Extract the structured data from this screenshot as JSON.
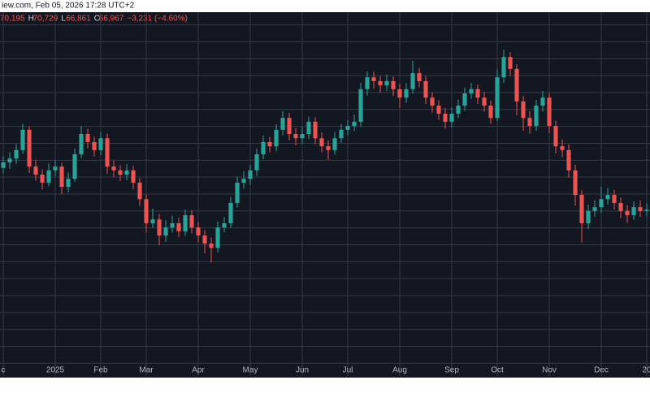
{
  "header": {
    "source": "iew.com, Feb 05, 2026 17:28 UTC+2",
    "ohlc": [
      {
        "label": "O",
        "value": "70,195"
      },
      {
        "label": "H",
        "value": "70,729"
      },
      {
        "label": "L",
        "value": "66,861"
      },
      {
        "label": "C",
        "value": "66,967"
      }
    ],
    "change": "−3,231 (−4.60%)"
  },
  "chart_data": {
    "type": "candlestick",
    "categories": [
      "c",
      null,
      null,
      null,
      null,
      null,
      null,
      null,
      "2025",
      null,
      null,
      null,
      null,
      null,
      null,
      "Feb",
      null,
      null,
      null,
      null,
      null,
      null,
      "Mar",
      null,
      null,
      null,
      null,
      null,
      null,
      null,
      "Apr",
      null,
      null,
      null,
      null,
      null,
      null,
      null,
      "May",
      null,
      null,
      null,
      null,
      null,
      null,
      null,
      "Jun",
      null,
      null,
      null,
      null,
      null,
      null,
      "Jul",
      null,
      null,
      null,
      null,
      null,
      null,
      null,
      "Aug",
      null,
      null,
      null,
      null,
      null,
      null,
      null,
      "Sep",
      null,
      null,
      null,
      null,
      null,
      null,
      "Oct",
      null,
      null,
      null,
      null,
      null,
      null,
      null,
      "Nov",
      null,
      null,
      null,
      null,
      null,
      null,
      null,
      "Dec",
      null,
      null,
      null,
      null,
      null,
      null,
      "20"
    ],
    "open": [
      98200,
      99500,
      100400,
      102400,
      107200,
      98500,
      96600,
      94700,
      97600,
      98500,
      93700,
      95600,
      101400,
      106200,
      104300,
      102400,
      105200,
      98500,
      97600,
      96600,
      97600,
      94700,
      90800,
      85100,
      86000,
      82200,
      84100,
      85100,
      83200,
      87000,
      84100,
      82200,
      80300,
      79300,
      84100,
      85100,
      89900,
      94700,
      95600,
      97600,
      101400,
      104300,
      103300,
      107200,
      110000,
      106200,
      105200,
      106200,
      109100,
      105200,
      103300,
      102400,
      105200,
      107200,
      108100,
      109100,
      116800,
      119600,
      118700,
      117700,
      118700,
      116800,
      114800,
      116800,
      120600,
      118700,
      114800,
      112900,
      111000,
      109100,
      111000,
      112900,
      115800,
      116800,
      114800,
      112900,
      110000,
      119600,
      124400,
      121600,
      113900,
      110000,
      108100,
      112900,
      114800,
      108100,
      103300,
      102400,
      97600,
      91800,
      85100,
      88000,
      88900,
      90800,
      91800,
      89900,
      88000,
      87000,
      88900,
      88000
    ],
    "high": [
      101000,
      101900,
      103800,
      108600,
      108000,
      100100,
      97900,
      99200,
      100000,
      99400,
      97100,
      102800,
      108100,
      107400,
      105600,
      106700,
      106300,
      99900,
      98800,
      99100,
      98700,
      95800,
      91900,
      88600,
      87300,
      85800,
      86900,
      86400,
      88300,
      88200,
      85400,
      83500,
      81700,
      85500,
      86600,
      91300,
      96100,
      97400,
      98900,
      102800,
      105800,
      105500,
      108500,
      111600,
      111200,
      107600,
      107900,
      110300,
      110200,
      106600,
      104700,
      106700,
      108600,
      109500,
      110800,
      118300,
      121000,
      120900,
      119900,
      120300,
      119800,
      118000,
      118200,
      123500,
      121800,
      119900,
      116100,
      114200,
      112400,
      112500,
      114300,
      117200,
      118300,
      117900,
      116200,
      114100,
      121500,
      126100,
      125600,
      122700,
      115200,
      111600,
      114300,
      116400,
      115900,
      109300,
      104900,
      103700,
      98900,
      92900,
      89500,
      90600,
      93700,
      93400,
      93000,
      91200,
      89400,
      90300,
      90500,
      89800
    ],
    "low": [
      96900,
      98000,
      99100,
      101500,
      97000,
      95200,
      93100,
      93800,
      96200,
      92000,
      92400,
      94900,
      100500,
      102800,
      100900,
      101200,
      96800,
      96000,
      95100,
      95300,
      93200,
      89200,
      83000,
      84000,
      79900,
      80700,
      82900,
      81800,
      82100,
      82700,
      80600,
      78000,
      75800,
      78200,
      83000,
      84000,
      88800,
      93300,
      94200,
      96300,
      100200,
      101800,
      102100,
      105900,
      104700,
      103500,
      103900,
      105000,
      103800,
      101900,
      100100,
      101300,
      104100,
      105900,
      106900,
      107900,
      115300,
      116900,
      116100,
      116400,
      115200,
      112300,
      113600,
      115700,
      117200,
      113300,
      111300,
      109600,
      107500,
      107800,
      109900,
      111700,
      114500,
      113300,
      111500,
      108600,
      109200,
      118300,
      119900,
      110600,
      107000,
      106300,
      107000,
      111500,
      106500,
      101600,
      100700,
      95900,
      89300,
      80600,
      83700,
      86700,
      87600,
      89500,
      88400,
      86300,
      85200,
      85900,
      86600,
      86700
    ],
    "close": [
      99500,
      100400,
      102400,
      107200,
      98500,
      96600,
      94700,
      97600,
      98500,
      93700,
      95600,
      101400,
      106200,
      104300,
      102400,
      105200,
      98500,
      97600,
      96600,
      97600,
      94700,
      90800,
      85100,
      86000,
      82200,
      84100,
      85100,
      83200,
      87000,
      84100,
      82200,
      80300,
      79300,
      84100,
      85100,
      89900,
      94700,
      95600,
      97600,
      101400,
      104300,
      103300,
      107200,
      110000,
      106200,
      105200,
      106200,
      109100,
      105200,
      103300,
      102400,
      105200,
      107200,
      108100,
      109100,
      116800,
      119600,
      118700,
      117700,
      118700,
      116800,
      114800,
      116800,
      120600,
      118700,
      114800,
      112900,
      111000,
      109100,
      111000,
      112900,
      115800,
      116800,
      114800,
      112900,
      110000,
      119600,
      124400,
      121600,
      113900,
      110000,
      108100,
      112900,
      114800,
      108100,
      103300,
      102400,
      97600,
      91800,
      85100,
      88000,
      88900,
      90800,
      91800,
      89900,
      88000,
      87000,
      88900,
      88000,
      88300
    ],
    "up_color": "#26a69a",
    "down_color": "#ef5350",
    "ylim": [
      49000,
      135000
    ],
    "yticks": [
      52000,
      56000,
      60000,
      64000,
      68000,
      72000,
      76000,
      80000,
      84000,
      88000,
      92000,
      96000,
      100000,
      104000,
      108000,
      112000,
      116000,
      120000,
      124000,
      128000,
      132000
    ],
    "grid": true
  }
}
